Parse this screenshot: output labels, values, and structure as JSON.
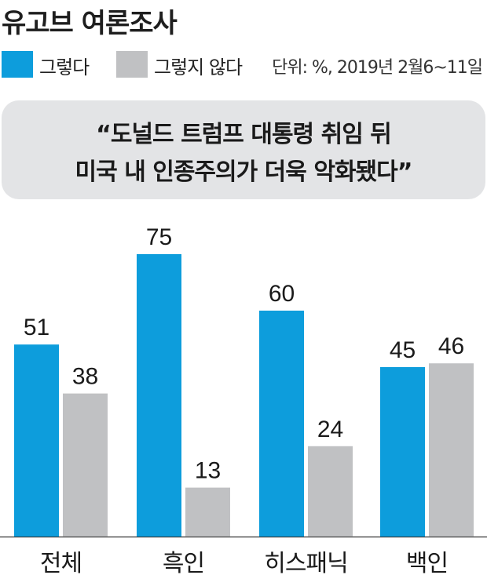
{
  "title": "유고브 여론조사",
  "legend": {
    "items": [
      {
        "label": "그렇다",
        "color": "#0d9ddc"
      },
      {
        "label": "그렇지 않다",
        "color": "#c0c1c3"
      }
    ],
    "unit_note": "단위: %, 2019년 2월6~11일"
  },
  "quote": {
    "line1": "“도널드 트럼프 대통령 취임 뒤",
    "line2": "미국 내 인종주의가 더욱 악화됐다”"
  },
  "chart_data": {
    "type": "bar",
    "title": "유고브 여론조사",
    "categories": [
      "전체",
      "흑인",
      "히스패닉",
      "백인"
    ],
    "series": [
      {
        "name": "그렇다",
        "values": [
          51,
          75,
          60,
          45
        ],
        "color": "#0d9ddc"
      },
      {
        "name": "그렇지 않다",
        "values": [
          38,
          13,
          24,
          46
        ],
        "color": "#c0c1c3"
      }
    ],
    "ylim": [
      0,
      100
    ],
    "xlabel": "",
    "ylabel": "",
    "grid": false,
    "legend_position": "top-left",
    "unit": "%"
  }
}
